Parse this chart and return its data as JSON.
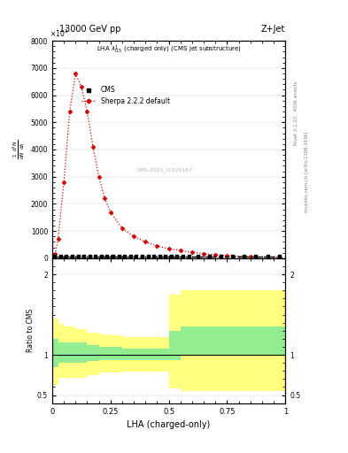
{
  "title_top": "13000 GeV pp",
  "title_right": "Z+Jet",
  "watermark": "CMS-2021_I1920187",
  "rivet_label": "Rivet 3.1.10,  400k events",
  "arxiv_label": "mcplots.cern.ch [arXiv:1306.3436]",
  "ylabel_ratio": "Ratio to CMS",
  "xlabel": "LHA (charged-only)",
  "cms_label": "CMS",
  "sherpa_label": "Sherpa 2.2.2 default",
  "sherpa_x": [
    0.0125,
    0.025,
    0.05,
    0.075,
    0.1,
    0.125,
    0.15,
    0.175,
    0.2,
    0.225,
    0.25,
    0.3,
    0.35,
    0.4,
    0.45,
    0.5,
    0.55,
    0.6,
    0.65,
    0.7,
    0.75,
    0.85,
    0.975
  ],
  "sherpa_y": [
    0.15,
    0.7,
    2.8,
    5.4,
    6.8,
    6.3,
    5.4,
    4.1,
    3.0,
    2.2,
    1.7,
    1.1,
    0.8,
    0.6,
    0.45,
    0.35,
    0.28,
    0.22,
    0.17,
    0.13,
    0.1,
    0.05,
    0.02
  ],
  "cms_x": [
    0.0125,
    0.0375,
    0.0625,
    0.0875,
    0.1125,
    0.1375,
    0.1625,
    0.1875,
    0.2125,
    0.2375,
    0.2625,
    0.2875,
    0.3125,
    0.3375,
    0.3625,
    0.3875,
    0.4125,
    0.4375,
    0.4625,
    0.4875,
    0.5125,
    0.5375,
    0.5625,
    0.5875,
    0.625,
    0.675,
    0.725,
    0.775,
    0.825,
    0.875,
    0.925,
    0.975
  ],
  "cms_y": [
    0.0,
    0.0,
    0.0,
    0.0,
    0.0,
    0.0,
    0.0,
    0.0,
    0.0,
    0.0,
    0.0,
    0.0,
    0.0,
    0.0,
    0.0,
    0.0,
    0.0,
    0.0,
    0.0,
    0.0,
    0.0,
    0.0,
    0.0,
    0.0,
    0.0,
    0.0,
    0.0,
    0.0,
    0.0,
    0.0,
    0.0,
    0.0
  ],
  "ratio_bin_edges": [
    0.0,
    0.025,
    0.05,
    0.1,
    0.15,
    0.2,
    0.25,
    0.3,
    0.35,
    0.4,
    0.45,
    0.5,
    0.55,
    0.6,
    0.65,
    0.7,
    0.75,
    0.8,
    0.85,
    0.9,
    1.0
  ],
  "ratio_green_lo": [
    0.85,
    0.9,
    0.9,
    0.9,
    0.92,
    0.93,
    0.93,
    0.93,
    0.94,
    0.94,
    0.94,
    0.94,
    1.0,
    1.0,
    1.0,
    1.0,
    1.0,
    1.0,
    1.0,
    1.0
  ],
  "ratio_green_hi": [
    1.2,
    1.15,
    1.15,
    1.15,
    1.12,
    1.1,
    1.1,
    1.08,
    1.08,
    1.08,
    1.08,
    1.3,
    1.35,
    1.35,
    1.35,
    1.35,
    1.35,
    1.35,
    1.35,
    1.35
  ],
  "ratio_yellow_lo": [
    0.63,
    0.72,
    0.72,
    0.72,
    0.75,
    0.78,
    0.78,
    0.79,
    0.79,
    0.79,
    0.79,
    0.58,
    0.55,
    0.55,
    0.55,
    0.55,
    0.55,
    0.55,
    0.55,
    0.55
  ],
  "ratio_yellow_hi": [
    1.45,
    1.38,
    1.35,
    1.32,
    1.28,
    1.25,
    1.24,
    1.22,
    1.22,
    1.22,
    1.22,
    1.75,
    1.8,
    1.8,
    1.8,
    1.8,
    1.8,
    1.8,
    1.8,
    1.8
  ],
  "ylim_main": [
    0,
    8.0
  ],
  "yticks_main": [
    0,
    1,
    2,
    3,
    4,
    5,
    6,
    7,
    8
  ],
  "ytick_labels_main": [
    "0",
    "1000",
    "2000",
    "3000",
    "4000",
    "5000",
    "6000",
    "7000",
    "8000"
  ],
  "ylim_ratio": [
    0.4,
    2.2
  ],
  "yticks_ratio": [
    0.5,
    1.0,
    2.0
  ],
  "ytick_labels_ratio": [
    "0.5",
    "1",
    "2"
  ],
  "xlim": [
    0.0,
    1.0
  ],
  "xticks": [
    0,
    0.25,
    0.5,
    0.75,
    1.0
  ],
  "xtick_labels": [
    "0",
    "0.25",
    "0.5",
    "0.75",
    "1"
  ],
  "color_cms": "black",
  "color_sherpa": "#cc0000",
  "color_green": "#90ee90",
  "color_yellow": "#ffff80",
  "fig_width": 3.93,
  "fig_height": 5.12,
  "fig_dpi": 100
}
